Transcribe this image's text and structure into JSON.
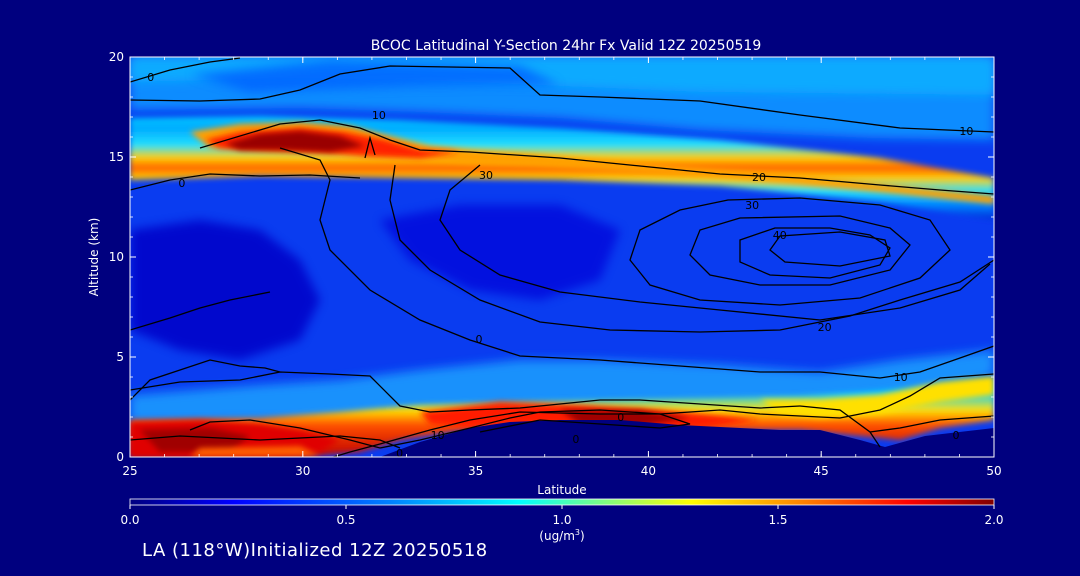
{
  "chart_data": {
    "type": "heatmap",
    "title": "BCOC Latitudinal Y-Section 24hr  Fx Valid 12Z 20250519",
    "xlabel": "Latitude",
    "ylabel": "Altitude (km)",
    "xlim": [
      25,
      50
    ],
    "ylim": [
      0,
      20
    ],
    "x_ticks": [
      "25",
      "30",
      "35",
      "40",
      "45",
      "50"
    ],
    "y_ticks": [
      "0",
      "5",
      "10",
      "15",
      "20"
    ],
    "colorbar": {
      "min": 0.0,
      "max": 2.0,
      "ticks": [
        "0.0",
        "0.5",
        "1.0",
        "1.5",
        "2.0"
      ],
      "units": "(ug/m3)",
      "colormap": [
        "#00007f",
        "#0000ff",
        "#0080ff",
        "#00ffff",
        "#80ff80",
        "#ffff00",
        "#ff8000",
        "#ff0000",
        "#7f0000"
      ]
    },
    "concentration_features": [
      {
        "lat": 25.5,
        "alt": 1.0,
        "value": 1.8
      },
      {
        "lat": 27.5,
        "alt": 0.5,
        "value": 1.9
      },
      {
        "lat": 29.5,
        "alt": 0.3,
        "value": 1.7
      },
      {
        "lat": 31.0,
        "alt": 1.2,
        "value": 1.4
      },
      {
        "lat": 36.0,
        "alt": 2.2,
        "value": 1.6
      },
      {
        "lat": 38.0,
        "alt": 2.1,
        "value": 1.9
      },
      {
        "lat": 40.0,
        "alt": 1.7,
        "value": 2.0
      },
      {
        "lat": 42.0,
        "alt": 1.5,
        "value": 1.6
      },
      {
        "lat": 44.5,
        "alt": 2.4,
        "value": 1.3
      },
      {
        "lat": 47.0,
        "alt": 1.8,
        "value": 1.0
      },
      {
        "lat": 49.0,
        "alt": 3.2,
        "value": 1.0
      },
      {
        "lat": 29.0,
        "alt": 15.5,
        "value": 1.9
      },
      {
        "lat": 31.5,
        "alt": 15.8,
        "value": 2.0
      },
      {
        "lat": 33.5,
        "alt": 15.5,
        "value": 1.7
      },
      {
        "lat": 26.0,
        "alt": 15.2,
        "value": 1.2
      },
      {
        "lat": 36.5,
        "alt": 15.2,
        "value": 1.4
      },
      {
        "lat": 40.0,
        "alt": 14.7,
        "value": 1.4
      },
      {
        "lat": 43.5,
        "alt": 14.4,
        "value": 1.3
      },
      {
        "lat": 47.0,
        "alt": 13.8,
        "value": 1.2
      },
      {
        "lat": 49.5,
        "alt": 13.2,
        "value": 1.1
      }
    ],
    "contour_labels": [
      {
        "text": "0",
        "lat": 25.6,
        "alt": 19.0
      },
      {
        "text": "10",
        "lat": 32.2,
        "alt": 17.1
      },
      {
        "text": "0",
        "lat": 26.5,
        "alt": 13.7
      },
      {
        "text": "10",
        "lat": 49.2,
        "alt": 16.3
      },
      {
        "text": "30",
        "lat": 35.3,
        "alt": 14.1
      },
      {
        "text": "20",
        "lat": 43.2,
        "alt": 14.0
      },
      {
        "text": "30",
        "lat": 43.0,
        "alt": 12.6
      },
      {
        "text": "40",
        "lat": 43.8,
        "alt": 11.1
      },
      {
        "text": "20",
        "lat": 45.1,
        "alt": 6.5
      },
      {
        "text": "0",
        "lat": 35.1,
        "alt": 5.9
      },
      {
        "text": "10",
        "lat": 47.3,
        "alt": 4.0
      },
      {
        "text": "0",
        "lat": 39.2,
        "alt": 2.0
      },
      {
        "text": "10",
        "lat": 33.9,
        "alt": 1.1
      },
      {
        "text": "0",
        "lat": 37.9,
        "alt": 0.9
      },
      {
        "text": "0",
        "lat": 32.8,
        "alt": 0.2
      },
      {
        "text": "0",
        "lat": 48.9,
        "alt": 1.1
      }
    ]
  },
  "footer": "LA (118°W)Initialized 12Z 20250518"
}
